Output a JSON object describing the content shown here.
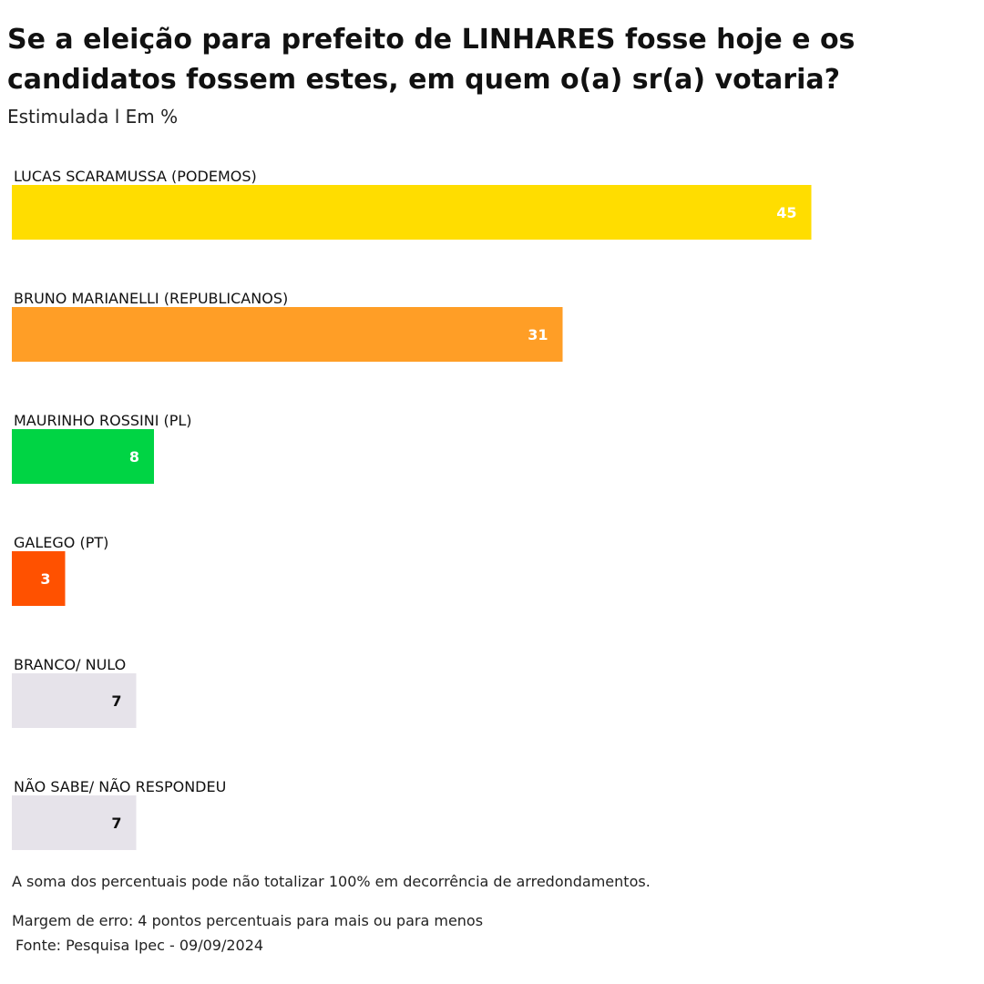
{
  "chart_data": {
    "type": "bar",
    "orientation": "horizontal",
    "title": "Se a eleição para prefeito de LINHARES fosse hoje e os candidatos fossem estes, em quem o(a) sr(a) votaria?",
    "subtitle": "Estimulada l Em %",
    "categories": [
      "LUCAS SCARAMUSSA  (PODEMOS)",
      "BRUNO MARIANELLI  (REPUBLICANOS)",
      "MAURINHO ROSSINI  (PL)",
      "GALEGO  (PT)",
      "BRANCO/ NULO",
      "NÃO SABE/ NÃO RESPONDEU"
    ],
    "values": [
      45,
      31,
      8,
      3,
      7,
      7
    ],
    "colors": [
      "#FFDD00",
      "#FF9E26",
      "#00D444",
      "#FF5100",
      "#E6E3EA",
      "#E6E3EA"
    ],
    "value_label_colors": [
      "#ffffff",
      "#ffffff",
      "#ffffff",
      "#ffffff",
      "#111111",
      "#111111"
    ],
    "grid": false,
    "legend": "none"
  },
  "notes": {
    "rounding": "A soma dos percentuais pode não totalizar 100% em decorrência de arredondamentos.",
    "margin": "Margem de erro: 4 pontos percentuais para mais ou para menos",
    "source": "Fonte: Pesquisa Ipec - 09/09/2024"
  }
}
